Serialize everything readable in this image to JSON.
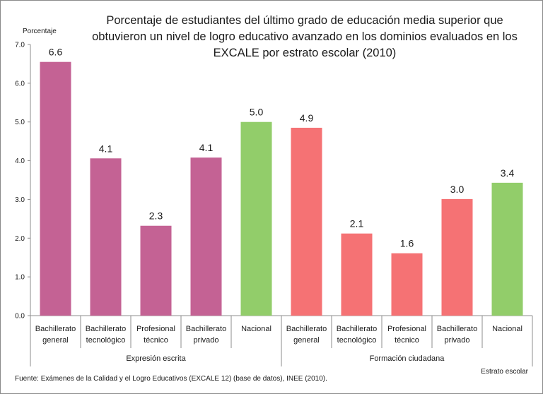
{
  "chart_data": {
    "type": "bar",
    "title": "Porcentaje de estudiantes del último grado de educación media superior que\nobtuvieron un nivel de logro educativo avanzado en los dominios evaluados en los\nEXCALE por estrato escolar (2010)",
    "ylabel": "Porcentaje",
    "xlabel": "Estrato escolar",
    "ylim": [
      0,
      7
    ],
    "yticks": [
      "0.0",
      "1.0",
      "2.0",
      "3.0",
      "4.0",
      "5.0",
      "6.0",
      "7.0"
    ],
    "grid": false,
    "groups": [
      {
        "name": "Expresión escrita",
        "categories": [
          "Bachillerato\ngeneral",
          "Bachillerato\ntecnológico",
          "Profesional\ntécnico",
          "Bachillerato\nprivado",
          "Nacional"
        ],
        "values": [
          6.55,
          4.06,
          2.32,
          4.08,
          5.0
        ],
        "labels": [
          "6.6",
          "4.1",
          "2.3",
          "4.1",
          "5.0"
        ],
        "colors": [
          "#c46294",
          "#c46294",
          "#c46294",
          "#c46294",
          "#92cd6a"
        ]
      },
      {
        "name": "Formación ciudadana",
        "categories": [
          "Bachillerato\ngeneral",
          "Bachillerato\ntecnológico",
          "Profesional\ntécnico",
          "Bachillerato\nprivado",
          "Nacional"
        ],
        "values": [
          4.85,
          2.12,
          1.61,
          3.01,
          3.43
        ],
        "labels": [
          "4.9",
          "2.1",
          "1.6",
          "3.0",
          "3.4"
        ],
        "colors": [
          "#f57274",
          "#f57274",
          "#f57274",
          "#f57274",
          "#92cd6a"
        ]
      }
    ],
    "source": "Fuente:  Exámenes de la Calidad y el Logro Educativos (EXCALE 12) (base de datos), INEE (2010)."
  }
}
